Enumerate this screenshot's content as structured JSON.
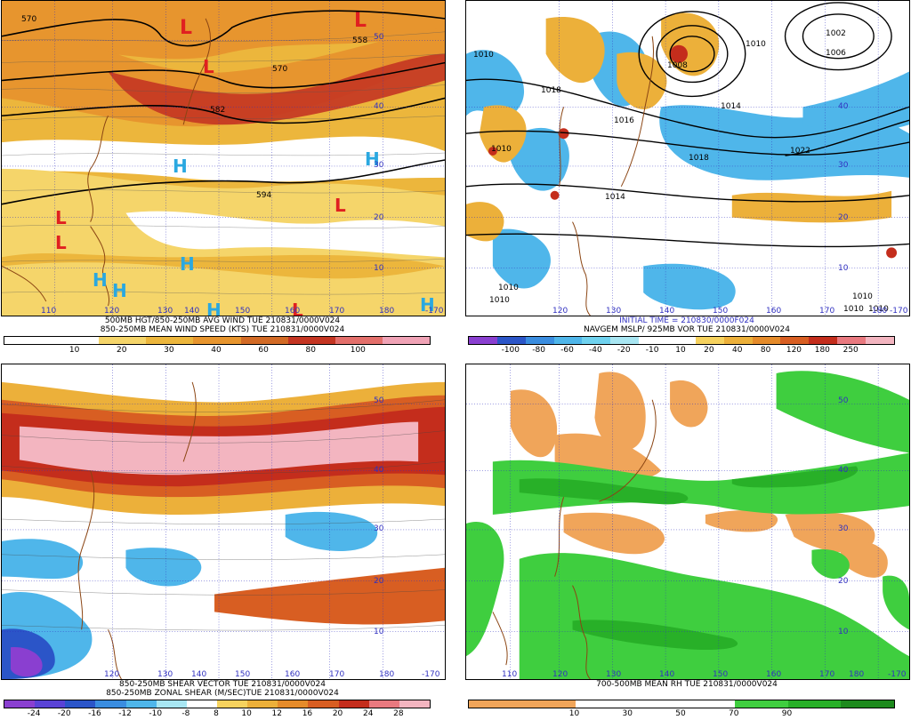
{
  "panels": [
    {
      "id": "p1",
      "caption1": "500MB HGT/850-250MB AVG WIND TUE 210831/0000V024",
      "caption2": "850-250MB MEAN WIND SPEED (KTS) TUE 210831/0000V024",
      "colorbar": {
        "colors": [
          "#ffffff",
          "#ffffff",
          "#f5d56a",
          "#ecb63c",
          "#e7952e",
          "#d26a25",
          "#c43522",
          "#e36f6b",
          "#f0a3b6"
        ],
        "ticks": [
          "10",
          "20",
          "30",
          "40",
          "60",
          "80",
          "100"
        ]
      },
      "contour_labels": [
        "570",
        "558",
        "570",
        "582",
        "594"
      ],
      "lat_labels": [
        "50",
        "40",
        "30",
        "20",
        "10"
      ],
      "lon_labels": [
        "110",
        "120",
        "130",
        "140",
        "150",
        "160",
        "170",
        "180",
        "-170"
      ]
    },
    {
      "id": "p2",
      "caption1": "INITIAL TIME = 210830/0000F024",
      "caption2": "NAVGEM MSLP/ 925MB VOR TUE 210831/0000V024",
      "colorbar": {
        "colors": [
          "#8a3fd0",
          "#2b55c8",
          "#3a8de0",
          "#4fb6ea",
          "#6fd2ef",
          "#a8e6f2",
          "#ffffff",
          "#ffffff",
          "#f6d25e",
          "#ecb03a",
          "#e58b2a",
          "#d85e22",
          "#c42d1c",
          "#e9797f",
          "#f3b5c0"
        ],
        "ticks": [
          "-100",
          "-80",
          "-60",
          "-40",
          "-20",
          "-10",
          "10",
          "20",
          "40",
          "80",
          "120",
          "180",
          "250"
        ]
      },
      "contour_labels": [
        "1010",
        "1018",
        "1016",
        "1014",
        "1018",
        "1022",
        "1014",
        "1010",
        "1008",
        "1010",
        "1002",
        "1006",
        "1010",
        "1010",
        "1010",
        "1010",
        "1010"
      ],
      "lat_labels": [
        "40",
        "30",
        "20",
        "10"
      ],
      "lon_labels": [
        "120",
        "130",
        "140",
        "150",
        "160",
        "170",
        "180",
        "-170"
      ]
    },
    {
      "id": "p3",
      "caption1": "850-250MB SHEAR VECTOR TUE 210831/0000V024",
      "caption2": "850-250MB ZONAL SHEAR (M/SEC)TUE 210831/0000V024",
      "colorbar": {
        "colors": [
          "#8a3fd0",
          "#5a43d6",
          "#2b55c8",
          "#3a8de0",
          "#4fb6ea",
          "#a8e6f2",
          "#ffffff",
          "#f6d25e",
          "#ecb03a",
          "#e58b2a",
          "#d85e22",
          "#c42d1c",
          "#e9797f",
          "#f3b5c0"
        ],
        "ticks": [
          "-24",
          "-20",
          "-16",
          "-12",
          "-10",
          "-8",
          "8",
          "10",
          "12",
          "16",
          "20",
          "24",
          "28"
        ]
      },
      "lat_labels": [
        "50",
        "40",
        "30",
        "20",
        "10"
      ],
      "lon_labels": [
        "120",
        "130",
        "140",
        "150",
        "160",
        "170",
        "180",
        "-170"
      ]
    },
    {
      "id": "p4",
      "caption1": "700-500MB MEAN RH TUE 210831/0000V024",
      "caption2": "",
      "colorbar": {
        "colors": [
          "#f0a55a",
          "#f0a55a",
          "#ffffff",
          "#ffffff",
          "#ffffff",
          "#3fce3f",
          "#28b028",
          "#1d8a1d"
        ],
        "ticks": [
          "10",
          "30",
          "50",
          "70",
          "90"
        ]
      },
      "lat_labels": [
        "50",
        "40",
        "30",
        "20",
        "10"
      ],
      "lon_labels": [
        "110",
        "120",
        "130",
        "140",
        "150",
        "160",
        "170",
        "180",
        "-170"
      ]
    }
  ],
  "pressure_centers": {
    "p1": [
      "L",
      "L",
      "L",
      "L",
      "L",
      "H",
      "H",
      "H",
      "H",
      "H",
      "H",
      "H",
      "H",
      "L",
      "L"
    ],
    "p2": []
  },
  "colors": {
    "high": "#2aa8e0",
    "low": "#e02020",
    "coast": "#8b4513",
    "grid": "#3030c0"
  }
}
